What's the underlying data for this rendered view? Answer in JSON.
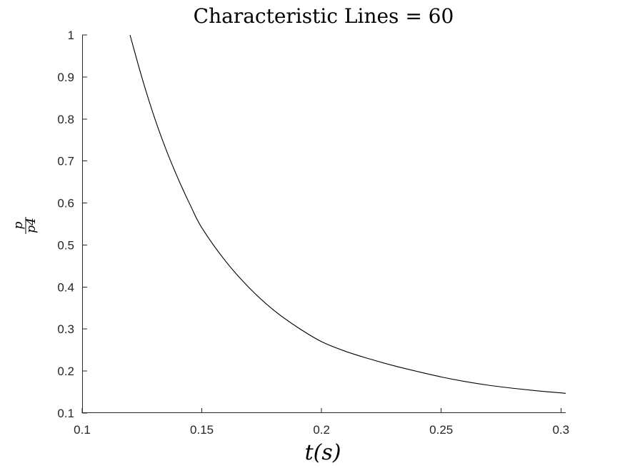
{
  "chart_data": {
    "type": "line",
    "title": "Characteristic Lines = 60",
    "xlabel": "t(s)",
    "ylabel": {
      "numerator": "p",
      "denominator": "p4"
    },
    "xlim": [
      0.1,
      0.302
    ],
    "ylim": [
      0.1,
      1.0
    ],
    "xticks": [
      0.1,
      0.15,
      0.2,
      0.25,
      0.3
    ],
    "xtick_labels": [
      "0.1",
      "0.15",
      "0.2",
      "0.25",
      "0.3"
    ],
    "yticks": [
      0.1,
      0.2,
      0.3,
      0.4,
      0.5,
      0.6,
      0.7,
      0.8,
      0.9,
      1.0
    ],
    "ytick_labels": [
      "0.1",
      "0.2",
      "0.3",
      "0.4",
      "0.5",
      "0.6",
      "0.7",
      "0.8",
      "0.9",
      "1"
    ],
    "grid": false,
    "series": [
      {
        "color": "#000000",
        "x": [
          0.12,
          0.125,
          0.13,
          0.135,
          0.14,
          0.145,
          0.15,
          0.16,
          0.17,
          0.18,
          0.19,
          0.2,
          0.21,
          0.22,
          0.23,
          0.24,
          0.25,
          0.26,
          0.27,
          0.28,
          0.29,
          0.3,
          0.302
        ],
        "y": [
          1.0,
          0.898,
          0.807,
          0.728,
          0.659,
          0.597,
          0.541,
          0.461,
          0.397,
          0.345,
          0.304,
          0.27,
          0.247,
          0.229,
          0.213,
          0.199,
          0.186,
          0.175,
          0.166,
          0.159,
          0.153,
          0.148,
          0.147
        ]
      }
    ]
  }
}
